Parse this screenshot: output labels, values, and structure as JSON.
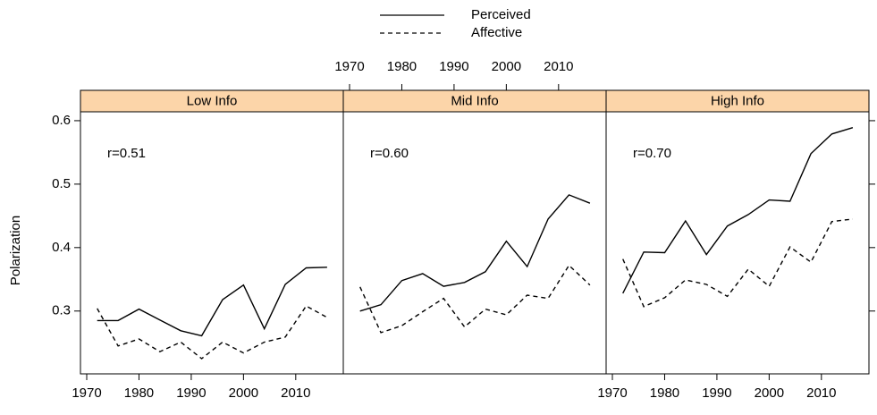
{
  "chart_data": [
    {
      "type": "line",
      "title": "Low Info",
      "annotation": "r=0.51",
      "y_label": "Polarization",
      "x": [
        1972,
        1976,
        1980,
        1984,
        1988,
        1992,
        1996,
        2000,
        2004,
        2008,
        2012,
        2016
      ],
      "series": [
        {
          "name": "Perceived",
          "color": "#000000",
          "line_style": "solid",
          "values": [
            0.285,
            0.285,
            0.303,
            0.286,
            0.269,
            0.261,
            0.318,
            0.341,
            0.272,
            0.342,
            0.368,
            0.369
          ]
        },
        {
          "name": "Affective",
          "color": "#000000",
          "line_style": "dashed",
          "values": [
            0.304,
            0.245,
            0.256,
            0.236,
            0.251,
            0.225,
            0.251,
            0.234,
            0.251,
            0.259,
            0.308,
            0.29
          ]
        }
      ],
      "xlim": [
        1968.8,
        2019.1
      ],
      "ylim": [
        0.201,
        0.614
      ],
      "xticks": [
        1970,
        1980,
        1990,
        2000,
        2010
      ],
      "yticks": [
        0.3,
        0.4,
        0.5,
        0.6
      ],
      "xaxis_side": "bottom",
      "yaxis_side": "left"
    },
    {
      "type": "line",
      "title": "Mid Info",
      "annotation": "r=0.60",
      "x": [
        1972,
        1976,
        1980,
        1984,
        1988,
        1992,
        1996,
        2000,
        2004,
        2008,
        2012,
        2016
      ],
      "series": [
        {
          "name": "Perceived",
          "color": "#000000",
          "line_style": "solid",
          "values": [
            0.3,
            0.31,
            0.348,
            0.359,
            0.339,
            0.345,
            0.362,
            0.41,
            0.37,
            0.445,
            0.483,
            0.47
          ]
        },
        {
          "name": "Affective",
          "color": "#000000",
          "line_style": "dashed",
          "values": [
            0.338,
            0.266,
            0.277,
            0.299,
            0.32,
            0.275,
            0.303,
            0.294,
            0.325,
            0.32,
            0.372,
            0.341
          ]
        }
      ],
      "xlim": [
        1968.8,
        2019.1
      ],
      "ylim": [
        0.201,
        0.614
      ],
      "xticks": [
        1970,
        1980,
        1990,
        2000,
        2010
      ],
      "xaxis_side": "top"
    },
    {
      "type": "line",
      "title": "High Info",
      "annotation": "r=0.70",
      "x": [
        1972,
        1976,
        1980,
        1984,
        1988,
        1992,
        1996,
        2000,
        2004,
        2008,
        2012,
        2016
      ],
      "series": [
        {
          "name": "Perceived",
          "color": "#000000",
          "line_style": "solid",
          "values": [
            0.328,
            0.393,
            0.392,
            0.442,
            0.389,
            0.434,
            0.452,
            0.475,
            0.473,
            0.548,
            0.579,
            0.589
          ]
        },
        {
          "name": "Affective",
          "color": "#000000",
          "line_style": "dashed",
          "values": [
            0.382,
            0.307,
            0.321,
            0.349,
            0.342,
            0.323,
            0.366,
            0.339,
            0.401,
            0.377,
            0.441,
            0.445
          ]
        }
      ],
      "xlim": [
        1968.8,
        2019.1
      ],
      "ylim": [
        0.201,
        0.614
      ],
      "xticks": [
        1970,
        1980,
        1990,
        2000,
        2010
      ],
      "xaxis_side": "bottom",
      "yaxis_side": "right"
    }
  ]
}
